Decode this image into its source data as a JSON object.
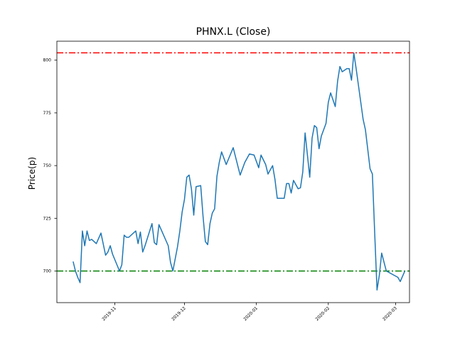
{
  "chart_data": {
    "type": "line",
    "title": "PHNX.L (Close)",
    "xlabel": "",
    "ylabel": "Price(p)",
    "xlim": [
      "2019-10-07",
      "2020-03-07"
    ],
    "ylim": [
      685,
      809
    ],
    "grid": false,
    "x_ticks": [
      "2019-11",
      "2019-12",
      "2020-01",
      "2020-02",
      "2020-03"
    ],
    "y_ticks": [
      700,
      725,
      750,
      775,
      800
    ],
    "colors": {
      "line": "#1f77b4",
      "upper": "#ff0000",
      "lower": "#008000"
    },
    "reference_lines": [
      {
        "value": 803.5,
        "color": "#ff0000",
        "style": "dashdot"
      },
      {
        "value": 700,
        "color": "#008000",
        "style": "dashdot"
      }
    ],
    "series": [
      {
        "x": [
          "2019-10-14",
          "2019-10-15",
          "2019-10-16",
          "2019-10-17",
          "2019-10-18",
          "2019-10-19",
          "2019-10-20",
          "2019-10-21",
          "2019-10-22",
          "2019-10-24",
          "2019-10-26",
          "2019-10-28",
          "2019-10-29",
          "2019-10-30",
          "2019-10-31",
          "2019-11-03",
          "2019-11-04",
          "2019-11-05",
          "2019-11-06",
          "2019-11-07",
          "2019-11-10",
          "2019-11-11",
          "2019-11-12",
          "2019-11-13",
          "2019-11-14",
          "2019-11-17",
          "2019-11-18",
          "2019-11-19",
          "2019-11-20",
          "2019-11-21",
          "2019-11-24",
          "2019-11-25",
          "2019-11-26",
          "2019-11-28",
          "2019-11-29",
          "2019-11-30",
          "2019-12-01",
          "2019-12-02",
          "2019-12-03",
          "2019-12-04",
          "2019-12-05",
          "2019-12-06",
          "2019-12-08",
          "2019-12-09",
          "2019-12-10",
          "2019-12-11",
          "2019-12-12",
          "2019-12-13",
          "2019-12-14",
          "2019-12-15",
          "2019-12-16",
          "2019-12-17",
          "2019-12-19",
          "2019-12-22",
          "2019-12-25",
          "2019-12-27",
          "2019-12-29",
          "2019-12-31",
          "2020-01-02",
          "2020-01-03",
          "2020-01-05",
          "2020-01-06",
          "2020-01-08",
          "2020-01-09",
          "2020-01-10",
          "2020-01-12",
          "2020-01-13",
          "2020-01-14",
          "2020-01-15",
          "2020-01-16",
          "2020-01-17",
          "2020-01-19",
          "2020-01-20",
          "2020-01-21",
          "2020-01-22",
          "2020-01-23",
          "2020-01-24",
          "2020-01-25",
          "2020-01-26",
          "2020-01-27",
          "2020-01-28",
          "2020-01-29",
          "2020-01-31",
          "2020-02-01",
          "2020-02-02",
          "2020-02-04",
          "2020-02-05",
          "2020-02-06",
          "2020-02-07",
          "2020-02-09",
          "2020-02-10",
          "2020-02-11",
          "2020-02-12",
          "2020-02-13",
          "2020-02-14",
          "2020-02-15",
          "2020-02-16",
          "2020-02-17",
          "2020-02-19",
          "2020-02-20",
          "2020-02-21",
          "2020-02-22",
          "2020-02-23",
          "2020-02-24",
          "2020-02-26",
          "2020-03-02",
          "2020-03-03",
          "2020-03-05"
        ],
        "values": [
          704.5,
          700,
          697,
          694.5,
          719,
          712,
          719,
          714.5,
          715,
          713,
          718,
          707.5,
          709,
          712,
          708,
          700,
          703,
          717,
          716,
          716,
          719,
          713,
          718.5,
          709,
          712,
          722.5,
          713.5,
          712.5,
          722,
          719.5,
          712,
          704,
          700,
          711.5,
          719,
          728,
          734,
          744.5,
          745.5,
          739,
          726.5,
          740,
          740.5,
          726,
          714,
          712.5,
          722.5,
          727.5,
          729.5,
          745,
          751.5,
          756.5,
          750.5,
          758.5,
          745.5,
          751.5,
          755.5,
          755,
          749,
          755,
          750.5,
          746,
          750,
          743.5,
          734.5,
          734.5,
          734.5,
          741.5,
          741.5,
          737,
          743,
          739,
          739.5,
          747,
          765.5,
          755,
          744.5,
          763,
          769,
          768,
          758,
          764,
          770,
          780,
          784.5,
          778,
          790,
          797,
          794.5,
          796,
          796,
          790.5,
          803.5,
          796,
          788,
          780,
          772,
          767,
          748.5,
          746,
          718,
          691,
          698,
          708.5,
          700,
          697,
          695,
          700
        ]
      }
    ]
  }
}
